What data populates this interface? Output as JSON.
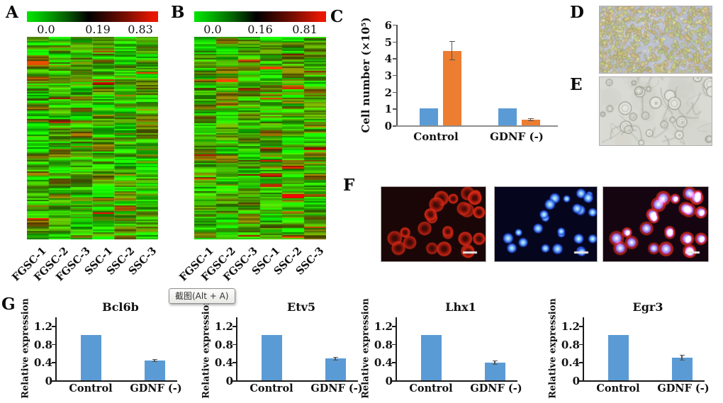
{
  "panel_labels": {
    "a": "A",
    "b": "B",
    "c": "C",
    "d": "D",
    "e": "E",
    "f": "F",
    "g": "G"
  },
  "heatmaps": [
    {
      "panel": "A",
      "scale_ticks": [
        "0.0",
        "0.19",
        "0.83"
      ],
      "columns": [
        "FGSC-1",
        "FGSC-2",
        "FGSC-3",
        "SSC-1",
        "SSC-2",
        "SSC-3"
      ],
      "color_low": "#00e400",
      "color_mid": "#000000",
      "color_high": "#e81600"
    },
    {
      "panel": "B",
      "scale_ticks": [
        "0.0",
        "0.16",
        "0.81"
      ],
      "columns": [
        "FGSC-1",
        "FGSC-2",
        "FGSC-3",
        "SSC-1",
        "SSC-2",
        "SSC-3"
      ],
      "color_low": "#00e400",
      "color_mid": "#000000",
      "color_high": "#e81600"
    }
  ],
  "chart_data": [
    {
      "id": "cell-number",
      "panel": "C",
      "type": "bar",
      "categories": [
        "Control",
        "GDNF (-)"
      ],
      "series": [
        {
          "name": "series-1",
          "color": "#5B9BD5",
          "values": [
            1.0,
            1.0
          ],
          "errors": [
            0,
            0
          ]
        },
        {
          "name": "series-2",
          "color": "#ED7D31",
          "values": [
            4.45,
            0.35
          ],
          "errors": [
            0.58,
            0.08
          ]
        }
      ],
      "ylabel": "Cell number (×10⁵)",
      "yticks": [
        0,
        1,
        2,
        3,
        4,
        5,
        6
      ],
      "tick_labels": [
        "0",
        "1",
        "2",
        "3",
        "4",
        "5",
        "6"
      ],
      "ylim": [
        0,
        6
      ],
      "grid": false,
      "legend": "none"
    },
    {
      "id": "bcl6b",
      "panel": "G",
      "type": "bar",
      "title": "Bcl6b",
      "categories": [
        "Control",
        "GDNF (-)"
      ],
      "series": [
        {
          "name": "series-1",
          "color": "#5B9BD5",
          "values": [
            1.0,
            0.44
          ],
          "errors": [
            0,
            0.03
          ]
        }
      ],
      "ylabel": "Relative expression",
      "yticks": [
        0,
        0.4,
        0.8,
        1.2
      ],
      "tick_labels": [
        "0",
        "0.4",
        "0.8",
        "1.2"
      ],
      "ylim": [
        0,
        1.35
      ],
      "grid": false,
      "legend": "none"
    },
    {
      "id": "etv5",
      "panel": "G",
      "type": "bar",
      "title": "Etv5",
      "categories": [
        "Control",
        "GDNF (-)"
      ],
      "series": [
        {
          "name": "series-1",
          "color": "#5B9BD5",
          "values": [
            1.0,
            0.48
          ],
          "errors": [
            0,
            0.04
          ]
        }
      ],
      "ylabel": "Relative expression",
      "yticks": [
        0,
        0.4,
        0.8,
        1.2
      ],
      "tick_labels": [
        "0",
        "0.4",
        "0.8",
        "1.2"
      ],
      "ylim": [
        0,
        1.35
      ],
      "grid": false,
      "legend": "none"
    },
    {
      "id": "lhx1",
      "panel": "G",
      "type": "bar",
      "title": "Lhx1",
      "categories": [
        "Control",
        "GDNF (-)"
      ],
      "series": [
        {
          "name": "series-1",
          "color": "#5B9BD5",
          "values": [
            1.0,
            0.39
          ],
          "errors": [
            0,
            0.05
          ]
        }
      ],
      "ylabel": "Relative expression",
      "yticks": [
        0,
        0.4,
        0.8,
        1.2
      ],
      "tick_labels": [
        "0",
        "0.4",
        "0.8",
        "1.2"
      ],
      "ylim": [
        0,
        1.35
      ],
      "grid": false,
      "legend": "none"
    },
    {
      "id": "egr3",
      "panel": "G",
      "type": "bar",
      "title": "Egr3",
      "categories": [
        "Control",
        "GDNF (-)"
      ],
      "series": [
        {
          "name": "series-1",
          "color": "#5B9BD5",
          "values": [
            1.0,
            0.5
          ],
          "errors": [
            0,
            0.06
          ]
        }
      ],
      "ylabel": "Relative expression",
      "yticks": [
        0,
        0.4,
        0.8,
        1.2
      ],
      "tick_labels": [
        "0",
        "0.4",
        "0.8",
        "1.2"
      ],
      "ylim": [
        0,
        1.35
      ],
      "grid": false,
      "legend": "none"
    }
  ],
  "micrographs": {
    "d": {
      "type": "brightfield",
      "content": "dense culture of small spindle-shaped cells"
    },
    "e": {
      "type": "brightfield",
      "content": "sparse large flat cells"
    },
    "f": [
      {
        "channel": "red",
        "content": "red cytoplasmic immunofluorescence, scale bar"
      },
      {
        "channel": "blue",
        "content": "blue DAPI nuclear staining, scale bar"
      },
      {
        "channel": "merge",
        "content": "merged red and blue channels, scale bar"
      }
    ]
  },
  "tooltip": {
    "text": "截图(Alt + A)"
  }
}
